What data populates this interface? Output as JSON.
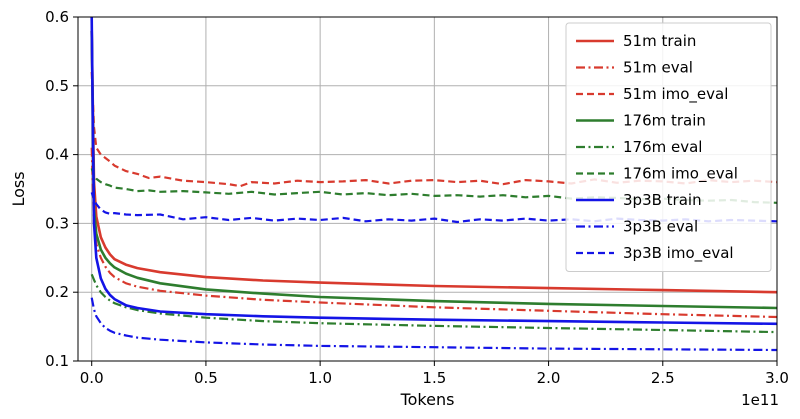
{
  "chart_data": {
    "type": "line",
    "xlabel": "Tokens",
    "ylabel": "Loss",
    "x_offset_label": "1e11",
    "xlim": [
      -0.06,
      3.0
    ],
    "ylim": [
      0.1,
      0.6
    ],
    "x_ticks": [
      0.0,
      0.5,
      1.0,
      1.5,
      2.0,
      2.5,
      3.0
    ],
    "x_tick_labels": [
      "0.0",
      "0.5",
      "1.0",
      "1.5",
      "2.0",
      "2.5",
      "3.0"
    ],
    "y_ticks": [
      0.1,
      0.2,
      0.3,
      0.4,
      0.5,
      0.6
    ],
    "y_tick_labels": [
      "0.1",
      "0.2",
      "0.3",
      "0.4",
      "0.5",
      "0.6"
    ],
    "grid": true,
    "legend_position": "top-right",
    "series": [
      {
        "name": "51m train",
        "color": "#d83a2e",
        "style": "solid",
        "x": [
          0.0,
          0.01,
          0.02,
          0.04,
          0.06,
          0.08,
          0.1,
          0.15,
          0.2,
          0.3,
          0.5,
          0.75,
          1.0,
          1.5,
          2.0,
          2.5,
          3.0
        ],
        "y": [
          0.58,
          0.36,
          0.31,
          0.28,
          0.265,
          0.255,
          0.248,
          0.24,
          0.235,
          0.229,
          0.222,
          0.217,
          0.214,
          0.209,
          0.206,
          0.203,
          0.2
        ]
      },
      {
        "name": "51m eval",
        "color": "#d83a2e",
        "style": "dashdot",
        "x": [
          0.0,
          0.01,
          0.02,
          0.04,
          0.06,
          0.08,
          0.1,
          0.15,
          0.2,
          0.3,
          0.5,
          0.75,
          1.0,
          1.5,
          2.0,
          2.5,
          3.0
        ],
        "y": [
          0.41,
          0.3,
          0.27,
          0.25,
          0.237,
          0.228,
          0.222,
          0.213,
          0.208,
          0.202,
          0.195,
          0.189,
          0.185,
          0.178,
          0.173,
          0.168,
          0.164
        ]
      },
      {
        "name": "51m imo_eval",
        "color": "#d83a2e",
        "style": "dashed",
        "x": [
          0.0,
          0.01,
          0.02,
          0.04,
          0.06,
          0.08,
          0.1,
          0.15,
          0.2,
          0.25,
          0.3,
          0.4,
          0.5,
          0.6,
          0.65,
          0.7,
          0.8,
          0.9,
          1.0,
          1.1,
          1.2,
          1.3,
          1.4,
          1.5,
          1.6,
          1.7,
          1.8,
          1.9,
          2.0,
          2.1,
          2.2,
          2.3,
          2.4,
          2.5,
          2.6,
          2.7,
          2.8,
          2.9,
          3.0
        ],
        "y": [
          0.52,
          0.44,
          0.41,
          0.4,
          0.395,
          0.39,
          0.384,
          0.376,
          0.372,
          0.366,
          0.368,
          0.362,
          0.36,
          0.357,
          0.354,
          0.36,
          0.358,
          0.362,
          0.36,
          0.361,
          0.363,
          0.358,
          0.362,
          0.363,
          0.36,
          0.362,
          0.357,
          0.363,
          0.361,
          0.358,
          0.364,
          0.359,
          0.362,
          0.361,
          0.358,
          0.363,
          0.36,
          0.362,
          0.36
        ]
      },
      {
        "name": "176m train",
        "color": "#2e7d2e",
        "style": "solid",
        "x": [
          0.0,
          0.01,
          0.02,
          0.04,
          0.06,
          0.08,
          0.1,
          0.15,
          0.2,
          0.3,
          0.5,
          0.75,
          1.0,
          1.5,
          2.0,
          2.5,
          3.0
        ],
        "y": [
          0.58,
          0.32,
          0.285,
          0.262,
          0.25,
          0.242,
          0.236,
          0.227,
          0.221,
          0.213,
          0.204,
          0.198,
          0.193,
          0.187,
          0.183,
          0.18,
          0.177
        ]
      },
      {
        "name": "176m eval",
        "color": "#2e7d2e",
        "style": "dashdot",
        "x": [
          0.0,
          0.01,
          0.02,
          0.04,
          0.06,
          0.08,
          0.1,
          0.15,
          0.2,
          0.3,
          0.5,
          0.75,
          1.0,
          1.5,
          2.0,
          2.5,
          3.0
        ],
        "y": [
          0.226,
          0.218,
          0.21,
          0.2,
          0.193,
          0.188,
          0.184,
          0.178,
          0.174,
          0.169,
          0.163,
          0.158,
          0.155,
          0.151,
          0.148,
          0.145,
          0.142
        ]
      },
      {
        "name": "176m imo_eval",
        "color": "#2e7d2e",
        "style": "dashed",
        "x": [
          0.0,
          0.01,
          0.02,
          0.04,
          0.06,
          0.08,
          0.1,
          0.15,
          0.2,
          0.25,
          0.3,
          0.4,
          0.5,
          0.6,
          0.7,
          0.8,
          0.9,
          1.0,
          1.1,
          1.2,
          1.3,
          1.4,
          1.5,
          1.6,
          1.7,
          1.8,
          1.9,
          2.0,
          2.1,
          2.2,
          2.3,
          2.4,
          2.5,
          2.6,
          2.7,
          2.8,
          2.9,
          3.0
        ],
        "y": [
          0.38,
          0.37,
          0.365,
          0.36,
          0.357,
          0.355,
          0.352,
          0.35,
          0.347,
          0.348,
          0.346,
          0.347,
          0.345,
          0.343,
          0.346,
          0.342,
          0.344,
          0.346,
          0.342,
          0.344,
          0.341,
          0.343,
          0.34,
          0.341,
          0.339,
          0.341,
          0.338,
          0.34,
          0.336,
          0.338,
          0.337,
          0.335,
          0.336,
          0.334,
          0.333,
          0.334,
          0.331,
          0.33
        ]
      },
      {
        "name": "3p3B train",
        "color": "#1414e6",
        "style": "solid",
        "x": [
          0.0,
          0.005,
          0.01,
          0.02,
          0.04,
          0.06,
          0.08,
          0.1,
          0.15,
          0.2,
          0.3,
          0.5,
          0.75,
          1.0,
          1.5,
          2.0,
          2.5,
          3.0
        ],
        "y": [
          0.6,
          0.45,
          0.3,
          0.25,
          0.22,
          0.205,
          0.196,
          0.19,
          0.181,
          0.177,
          0.172,
          0.168,
          0.165,
          0.163,
          0.16,
          0.158,
          0.156,
          0.154
        ]
      },
      {
        "name": "3p3B eval",
        "color": "#1414e6",
        "style": "dashdot",
        "x": [
          0.0,
          0.01,
          0.02,
          0.04,
          0.06,
          0.08,
          0.1,
          0.15,
          0.2,
          0.3,
          0.5,
          0.75,
          1.0,
          1.5,
          2.0,
          2.5,
          3.0
        ],
        "y": [
          0.192,
          0.175,
          0.165,
          0.155,
          0.148,
          0.144,
          0.141,
          0.137,
          0.134,
          0.131,
          0.127,
          0.124,
          0.122,
          0.12,
          0.118,
          0.117,
          0.116
        ]
      },
      {
        "name": "3p3B imo_eval",
        "color": "#1414e6",
        "style": "dashed",
        "x": [
          0.0,
          0.01,
          0.02,
          0.04,
          0.06,
          0.08,
          0.1,
          0.15,
          0.2,
          0.3,
          0.4,
          0.5,
          0.6,
          0.7,
          0.8,
          0.9,
          1.0,
          1.1,
          1.2,
          1.3,
          1.4,
          1.5,
          1.6,
          1.7,
          1.8,
          1.9,
          2.0,
          2.1,
          2.2,
          2.3,
          2.4,
          2.5,
          2.6,
          2.7,
          2.8,
          2.9,
          3.0
        ],
        "y": [
          0.345,
          0.335,
          0.328,
          0.32,
          0.316,
          0.314,
          0.315,
          0.313,
          0.312,
          0.313,
          0.306,
          0.309,
          0.305,
          0.308,
          0.304,
          0.307,
          0.305,
          0.308,
          0.303,
          0.306,
          0.304,
          0.307,
          0.302,
          0.306,
          0.304,
          0.307,
          0.304,
          0.306,
          0.303,
          0.307,
          0.305,
          0.304,
          0.306,
          0.303,
          0.305,
          0.304,
          0.303
        ]
      }
    ]
  }
}
